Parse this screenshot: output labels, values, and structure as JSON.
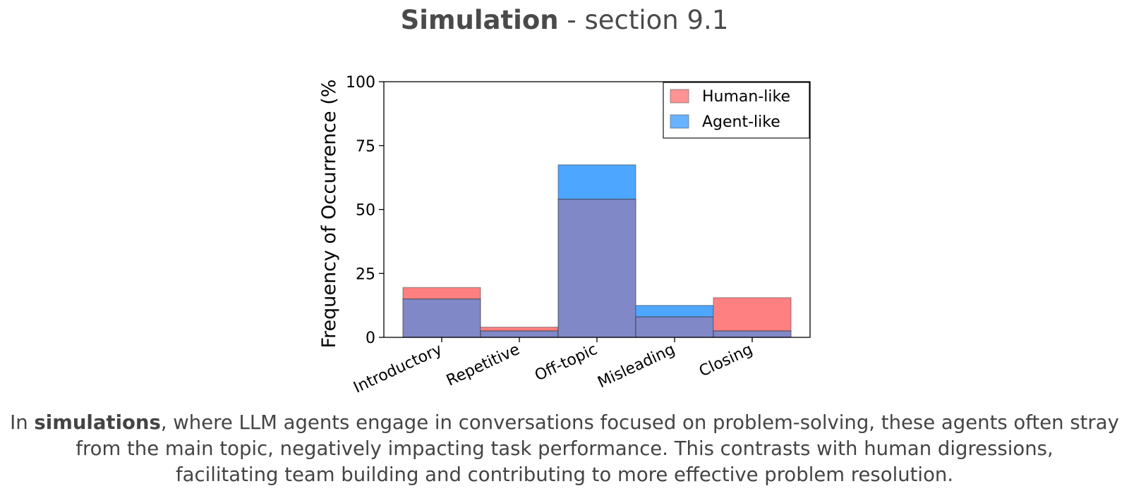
{
  "header": {
    "title_bold": "Simulation",
    "title_rest": " - section 9.1"
  },
  "chart_data": {
    "type": "bar",
    "title": "",
    "xlabel": "",
    "ylabel": "Frequency of Occurrence (%",
    "ylim": [
      0,
      100
    ],
    "yticks": [
      "0",
      "25",
      "50",
      "75",
      "100"
    ],
    "categories": [
      "Introductory",
      "Repetitive",
      "Off-topic",
      "Misleading",
      "Closing"
    ],
    "series": [
      {
        "name": "Human-like",
        "values": [
          19.5,
          4.0,
          54.0,
          8.0,
          15.5
        ],
        "color": "#ff8080"
      },
      {
        "name": "Agent-like",
        "values": [
          15.0,
          2.5,
          67.5,
          12.5,
          2.5
        ],
        "color": "#4da6ff"
      }
    ],
    "overlap_color": "#8088c8",
    "legend_position": "top-right",
    "grid": false
  },
  "caption": {
    "line1_pre": "In ",
    "line1_bold": "simulations",
    "line1_post": ", where LLM agents engage in conversations focused on problem-solving, these agents often stray",
    "line2": "from the main topic, negatively impacting task performance. This contrasts with human digressions,",
    "line3": "facilitating team building and contributing to more effective problem resolution."
  }
}
